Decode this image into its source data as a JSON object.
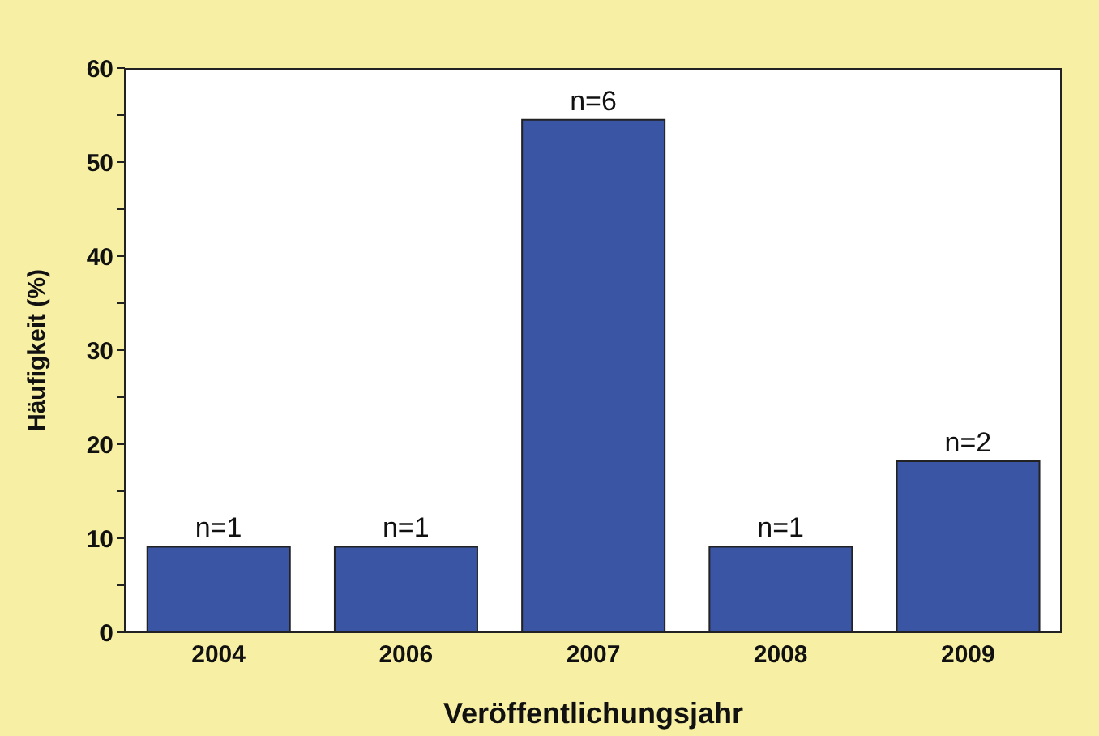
{
  "chart_data": {
    "type": "bar",
    "xlabel": "Veröffentlichungsjahr",
    "ylabel": "Häufigkeit (%)",
    "categories": [
      "2004",
      "2006",
      "2007",
      "2008",
      "2009"
    ],
    "values": [
      9.1,
      9.1,
      54.5,
      9.1,
      18.2
    ],
    "annotations": [
      {
        "text": "n=1",
        "x": "2004",
        "y": 9.1
      },
      {
        "text": "n=1",
        "x": "2006",
        "y": 9.1
      },
      {
        "text": "n=6",
        "x": "2007",
        "y": 54.5
      },
      {
        "text": "n=1",
        "x": "2008",
        "y": 9.1
      },
      {
        "text": "n=2",
        "x": "2009",
        "y": 18.2
      }
    ],
    "color": "#3a55a4",
    "ylim": [
      0,
      60
    ],
    "yticks": [
      0,
      {
        "value": 5,
        "label": null
      },
      10,
      {
        "value": 15,
        "label": null
      },
      20,
      {
        "value": 25,
        "label": null
      },
      30,
      {
        "value": 35,
        "label": null
      },
      40,
      {
        "value": 45,
        "label": null
      },
      50,
      {
        "value": 55,
        "label": null
      },
      60
    ],
    "grid": false,
    "legend": false
  }
}
